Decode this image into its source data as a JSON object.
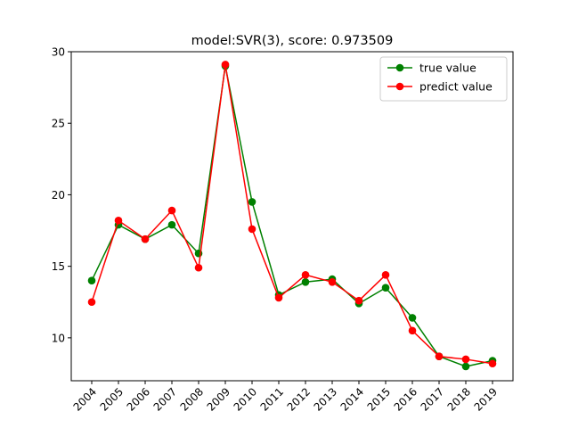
{
  "chart_data": {
    "type": "line",
    "title": "model:SVR(3), score: 0.973509",
    "xlabel": "",
    "ylabel": "",
    "categories": [
      "2004",
      "2005",
      "2006",
      "2007",
      "2008",
      "2009",
      "2010",
      "2011",
      "2012",
      "2013",
      "2014",
      "2015",
      "2016",
      "2017",
      "2018",
      "2019"
    ],
    "yticks": [
      10,
      15,
      20,
      25,
      30
    ],
    "ylim": [
      7.0,
      30.0
    ],
    "grid": false,
    "legend_position": "top-right",
    "series": [
      {
        "name": "true value",
        "color": "#008000",
        "values": [
          14.0,
          17.9,
          16.9,
          17.9,
          15.9,
          29.0,
          19.5,
          13.0,
          13.9,
          14.1,
          12.4,
          13.5,
          11.4,
          8.7,
          8.0,
          8.4
        ]
      },
      {
        "name": "predict value",
        "color": "#ff0000",
        "values": [
          12.5,
          18.2,
          16.9,
          18.9,
          14.9,
          29.1,
          17.6,
          12.8,
          14.4,
          13.9,
          12.6,
          14.4,
          10.5,
          8.7,
          8.5,
          8.2
        ]
      }
    ]
  }
}
